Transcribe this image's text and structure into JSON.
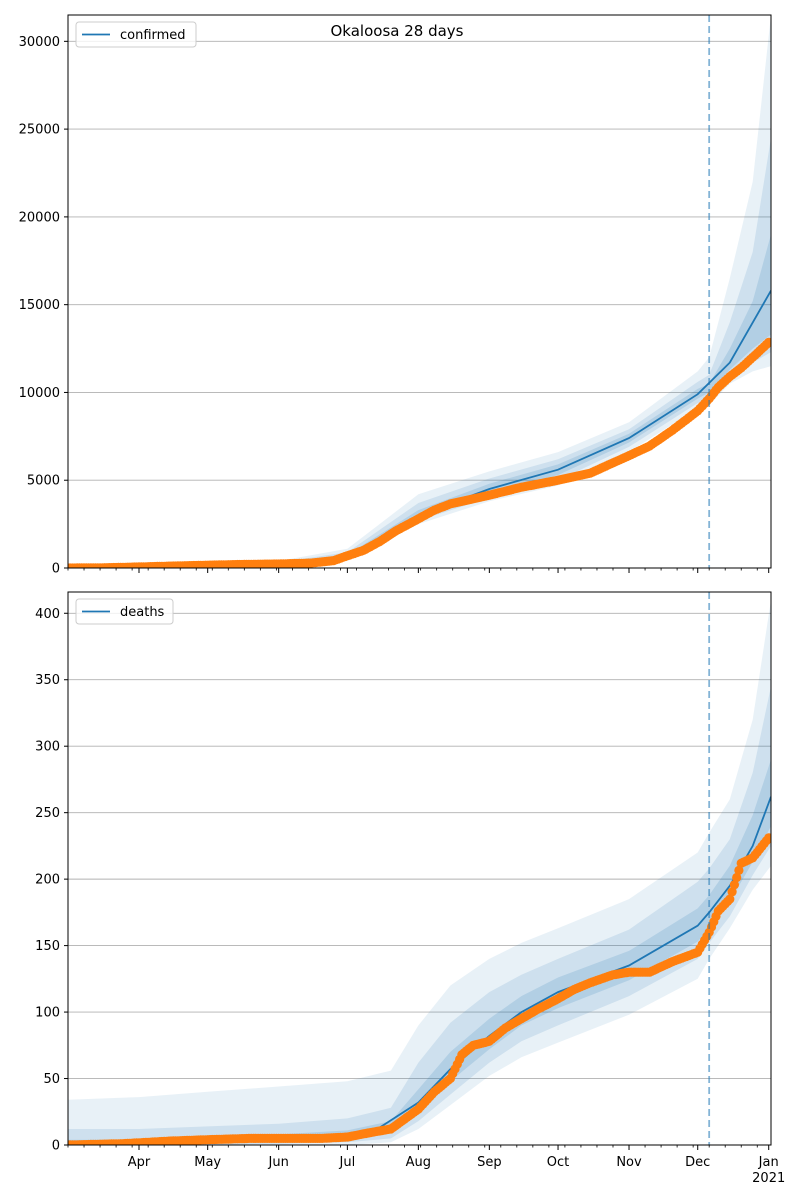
{
  "title": "Okaloosa 28 days",
  "colors": {
    "line": "#1f77b4",
    "observed": "#ff7f0e",
    "band": "#1f77b4",
    "grid": "#b0b0b0",
    "forecast_divider": "#1f77b4"
  },
  "x_axis": {
    "month_labels": [
      "Apr",
      "May",
      "Jun",
      "Jul",
      "Aug",
      "Sep",
      "Oct",
      "Nov",
      "Dec",
      "Jan"
    ],
    "year_label": "2021",
    "month_starts": [
      "2020-04-01",
      "2020-05-01",
      "2020-06-01",
      "2020-07-01",
      "2020-08-01",
      "2020-09-01",
      "2020-10-01",
      "2020-11-01",
      "2020-12-01",
      "2021-01-01"
    ],
    "range": [
      "2020-03-01",
      "2021-01-02"
    ],
    "forecast_start": "2020-12-06"
  },
  "chart_data": [
    {
      "type": "line",
      "legend_label": "confirmed",
      "legend_position": "top-left",
      "grid": "horizontal",
      "ylim": [
        0,
        31500
      ],
      "yticks": [
        0,
        5000,
        10000,
        15000,
        20000,
        25000,
        30000
      ],
      "model": {
        "x": [
          "2020-03-01",
          "2020-04-01",
          "2020-05-01",
          "2020-06-01",
          "2020-07-01",
          "2020-08-01",
          "2020-09-01",
          "2020-10-01",
          "2020-11-01",
          "2020-12-01",
          "2020-12-15",
          "2021-01-02"
        ],
        "y": [
          0,
          80,
          180,
          250,
          650,
          3000,
          4500,
          5600,
          7400,
          9900,
          11700,
          15800
        ]
      },
      "bands": [
        {
          "x": [
            "2020-03-01",
            "2020-06-01",
            "2020-07-01",
            "2020-08-01",
            "2020-09-01",
            "2020-10-01",
            "2020-11-01",
            "2020-12-01",
            "2020-12-06",
            "2020-12-15",
            "2020-12-25",
            "2021-01-02"
          ],
          "lower": [
            0,
            150,
            400,
            2500,
            3800,
            4700,
            6600,
            9100,
            9300,
            10500,
            11200,
            11500
          ],
          "upper": [
            0,
            400,
            1100,
            4200,
            5500,
            6600,
            8300,
            11200,
            12000,
            16500,
            22000,
            31500
          ]
        },
        {
          "x": [
            "2020-03-01",
            "2020-06-01",
            "2020-07-01",
            "2020-08-01",
            "2020-09-01",
            "2020-10-01",
            "2020-11-01",
            "2020-12-01",
            "2020-12-06",
            "2020-12-15",
            "2020-12-25",
            "2021-01-02"
          ],
          "lower": [
            0,
            190,
            500,
            2700,
            4000,
            5000,
            6900,
            9400,
            9700,
            10900,
            11700,
            12300
          ],
          "upper": [
            0,
            330,
            900,
            3700,
            5100,
            6200,
            7900,
            10600,
            11000,
            14000,
            18000,
            24500
          ]
        },
        {
          "x": [
            "2020-03-01",
            "2020-06-01",
            "2020-07-01",
            "2020-08-01",
            "2020-09-01",
            "2020-10-01",
            "2020-11-01",
            "2020-12-01",
            "2020-12-06",
            "2020-12-15",
            "2020-12-25",
            "2021-01-02"
          ],
          "lower": [
            0,
            220,
            580,
            2850,
            4250,
            5300,
            7150,
            9650,
            10000,
            11300,
            12500,
            13300
          ],
          "upper": [
            0,
            290,
            760,
            3300,
            4800,
            5900,
            7650,
            10200,
            10500,
            12500,
            15200,
            19000
          ]
        }
      ],
      "observed": {
        "x": [
          "2020-03-01",
          "2020-03-15",
          "2020-04-01",
          "2020-04-15",
          "2020-05-01",
          "2020-05-15",
          "2020-06-01",
          "2020-06-15",
          "2020-06-25",
          "2020-07-01",
          "2020-07-08",
          "2020-07-15",
          "2020-07-22",
          "2020-08-01",
          "2020-08-08",
          "2020-08-15",
          "2020-08-22",
          "2020-09-01",
          "2020-09-15",
          "2020-10-01",
          "2020-10-15",
          "2020-11-01",
          "2020-11-10",
          "2020-11-20",
          "2020-12-01",
          "2020-12-06",
          "2020-12-10",
          "2020-12-15",
          "2020-12-20",
          "2020-12-25",
          "2021-01-01"
        ],
        "y": [
          0,
          10,
          60,
          110,
          160,
          200,
          230,
          280,
          420,
          700,
          1000,
          1500,
          2100,
          2800,
          3300,
          3650,
          3850,
          4150,
          4600,
          5000,
          5400,
          6400,
          6950,
          7850,
          8950,
          9650,
          10300,
          10900,
          11400,
          12000,
          12850
        ]
      }
    },
    {
      "type": "line",
      "legend_label": "deaths",
      "legend_position": "top-left",
      "grid": "horizontal",
      "ylim": [
        0,
        416
      ],
      "yticks": [
        0,
        50,
        100,
        150,
        200,
        250,
        300,
        350,
        400
      ],
      "model": {
        "x": [
          "2020-03-01",
          "2020-04-01",
          "2020-05-01",
          "2020-06-01",
          "2020-07-01",
          "2020-07-15",
          "2020-08-01",
          "2020-08-15",
          "2020-09-01",
          "2020-09-15",
          "2020-10-01",
          "2020-11-01",
          "2020-12-01",
          "2020-12-06",
          "2020-12-15",
          "2020-12-25",
          "2021-01-02"
        ],
        "y": [
          0,
          1,
          3,
          5,
          8,
          13,
          32,
          57,
          82,
          100,
          115,
          135,
          165,
          175,
          195,
          225,
          262
        ]
      },
      "bands": [
        {
          "x": [
            "2020-03-01",
            "2020-04-01",
            "2020-05-01",
            "2020-06-01",
            "2020-07-01",
            "2020-07-20",
            "2020-08-01",
            "2020-08-15",
            "2020-09-01",
            "2020-09-15",
            "2020-10-01",
            "2020-11-01",
            "2020-12-01",
            "2020-12-06",
            "2020-12-15",
            "2020-12-25",
            "2021-01-02"
          ],
          "lower": [
            0,
            0,
            0,
            0,
            0,
            2,
            12,
            30,
            52,
            66,
            77,
            98,
            125,
            140,
            163,
            192,
            210
          ],
          "upper": [
            34,
            36,
            40,
            44,
            48,
            56,
            90,
            120,
            140,
            152,
            163,
            185,
            220,
            235,
            260,
            320,
            410
          ]
        },
        {
          "x": [
            "2020-03-01",
            "2020-04-01",
            "2020-05-01",
            "2020-06-01",
            "2020-07-01",
            "2020-07-20",
            "2020-08-01",
            "2020-08-15",
            "2020-09-01",
            "2020-09-15",
            "2020-10-01",
            "2020-11-01",
            "2020-12-01",
            "2020-12-06",
            "2020-12-15",
            "2020-12-25",
            "2021-01-02"
          ],
          "lower": [
            0,
            0,
            0,
            1,
            2,
            5,
            18,
            38,
            62,
            78,
            90,
            112,
            140,
            152,
            172,
            203,
            225
          ],
          "upper": [
            12,
            12,
            14,
            16,
            20,
            28,
            62,
            92,
            115,
            128,
            140,
            162,
            198,
            208,
            230,
            280,
            345
          ]
        },
        {
          "x": [
            "2020-03-01",
            "2020-04-01",
            "2020-05-01",
            "2020-06-01",
            "2020-07-01",
            "2020-07-20",
            "2020-08-01",
            "2020-08-15",
            "2020-09-01",
            "2020-09-15",
            "2020-10-01",
            "2020-11-01",
            "2020-12-01",
            "2020-12-06",
            "2020-12-15",
            "2020-12-25",
            "2021-01-02"
          ],
          "lower": [
            0,
            0,
            1,
            3,
            5,
            9,
            25,
            48,
            72,
            90,
            103,
            124,
            153,
            163,
            183,
            213,
            240
          ],
          "upper": [
            4,
            4,
            6,
            8,
            11,
            18,
            42,
            70,
            95,
            112,
            126,
            146,
            178,
            188,
            210,
            248,
            290
          ]
        }
      ],
      "observed": {
        "x": [
          "2020-03-01",
          "2020-03-25",
          "2020-04-15",
          "2020-05-01",
          "2020-05-20",
          "2020-06-01",
          "2020-06-20",
          "2020-07-01",
          "2020-07-10",
          "2020-07-20",
          "2020-08-01",
          "2020-08-08",
          "2020-08-15",
          "2020-08-20",
          "2020-08-25",
          "2020-09-01",
          "2020-09-08",
          "2020-09-15",
          "2020-09-22",
          "2020-10-01",
          "2020-10-08",
          "2020-10-15",
          "2020-10-25",
          "2020-11-01",
          "2020-11-10",
          "2020-11-20",
          "2020-12-01",
          "2020-12-06",
          "2020-12-10",
          "2020-12-15",
          "2020-12-20",
          "2020-12-25",
          "2021-01-01"
        ],
        "y": [
          0,
          1,
          3,
          4,
          5,
          5,
          5,
          6,
          9,
          12,
          27,
          40,
          50,
          68,
          75,
          78,
          88,
          95,
          102,
          110,
          117,
          122,
          128,
          130,
          130,
          138,
          145,
          160,
          176,
          185,
          212,
          216,
          231
        ]
      }
    }
  ]
}
